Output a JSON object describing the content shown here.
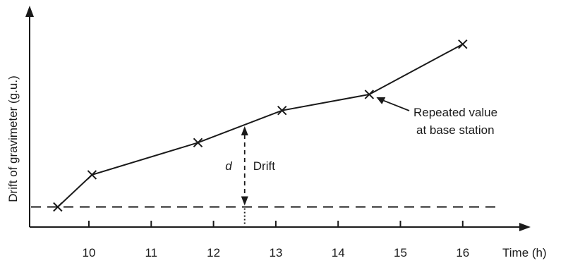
{
  "chart_data": {
    "type": "line",
    "xlabel": "Time (h)",
    "ylabel": "Drift of gravimeter (g.u.)",
    "xlim": [
      9.0,
      17.0
    ],
    "ylim": [
      0,
      10
    ],
    "x_ticks": [
      10,
      11,
      12,
      13,
      14,
      15,
      16
    ],
    "x_tick_labels": [
      "10",
      "11",
      "12",
      "13",
      "14",
      "15",
      "16"
    ],
    "series": [
      {
        "points": [
          {
            "x": 9.5,
            "y": 1.0
          },
          {
            "x": 10.05,
            "y": 2.6
          },
          {
            "x": 11.75,
            "y": 4.2
          },
          {
            "x": 13.1,
            "y": 5.8
          },
          {
            "x": 14.5,
            "y": 6.6
          },
          {
            "x": 16.0,
            "y": 9.1
          }
        ]
      }
    ],
    "baseline": {
      "y": 1.0
    },
    "drift_marker": {
      "x": 12.5,
      "symbol": "d",
      "label": "Drift"
    },
    "annotations": [
      {
        "text_lines": [
          "Repeated value",
          "at base station"
        ],
        "target_point_index": 4
      }
    ],
    "grid": false,
    "legend": "none"
  }
}
